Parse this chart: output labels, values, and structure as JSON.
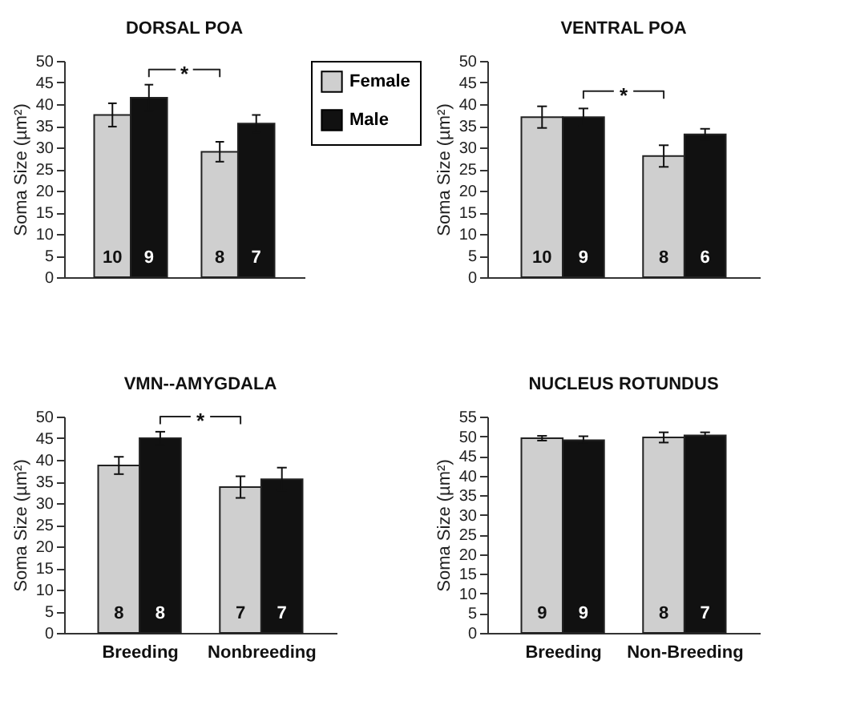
{
  "chart_data": [
    {
      "type": "bar",
      "title": "DORSAL POA",
      "ylabel": "Soma Size (µm²)",
      "categories": [
        null,
        null
      ],
      "tick_labels": "y",
      "legend": "top right",
      "ylim": [
        0,
        50
      ],
      "yticks": [
        0,
        5,
        10,
        15,
        20,
        25,
        30,
        35,
        40,
        45,
        50
      ],
      "series": [
        {
          "name": "Female",
          "color": "#cfcfcf",
          "values": [
            37.5,
            29
          ],
          "errors": [
            2.7,
            2.3
          ]
        },
        {
          "name": "Male",
          "color": "#111111",
          "values": [
            41.5,
            35.5
          ],
          "errors": [
            3,
            2
          ]
        }
      ],
      "annotations": [
        "*",
        "10",
        "9",
        "8",
        "7"
      ]
    },
    {
      "type": "bar",
      "title": "VENTRAL POA",
      "ylabel": "Soma Size (µm²)",
      "categories": [
        null,
        null
      ],
      "tick_labels": "y",
      "ylim": [
        0,
        50
      ],
      "yticks": [
        0,
        5,
        10,
        15,
        20,
        25,
        30,
        35,
        40,
        45,
        50
      ],
      "series": [
        {
          "color": "#cfcfcf",
          "values": [
            37,
            28
          ],
          "errors": [
            2.5,
            2.5
          ]
        },
        {
          "color": "#111111",
          "values": [
            37,
            33
          ],
          "errors": [
            2,
            1.3
          ]
        }
      ],
      "annotations": [
        "*",
        "10",
        "9",
        "8",
        "6"
      ]
    },
    {
      "type": "bar",
      "title": "VMN--AMYGDALA",
      "ylabel": "Soma Size (µm²)",
      "categories": [
        "Breeding",
        "Nonbreeding"
      ],
      "ylim": [
        0,
        50
      ],
      "yticks": [
        0,
        5,
        10,
        15,
        20,
        25,
        30,
        35,
        40,
        45,
        50
      ],
      "series": [
        {
          "color": "#cfcfcf",
          "values": [
            38.7,
            33.7
          ],
          "errors": [
            2,
            2.5
          ]
        },
        {
          "color": "#111111",
          "values": [
            45,
            35.5
          ],
          "errors": [
            1.5,
            2.7
          ]
        }
      ],
      "annotations": [
        "*",
        "8",
        "8",
        "7",
        "7"
      ]
    },
    {
      "type": "bar",
      "title": "NUCLEUS ROTUNDUS",
      "ylabel": "Soma Size (µm²)",
      "categories": [
        "Breeding",
        "Non-Breeding"
      ],
      "ylim": [
        0,
        55
      ],
      "yticks": [
        0,
        5,
        10,
        15,
        20,
        25,
        30,
        35,
        40,
        45,
        50,
        55
      ],
      "series": [
        {
          "color": "#cfcfcf",
          "values": [
            49.5,
            49.7
          ],
          "errors": [
            0.6,
            1.3
          ]
        },
        {
          "color": "#111111",
          "values": [
            49,
            50.2
          ],
          "errors": [
            1,
            0.8
          ]
        }
      ],
      "annotations": [
        "9",
        "9",
        "8",
        "7"
      ]
    }
  ]
}
